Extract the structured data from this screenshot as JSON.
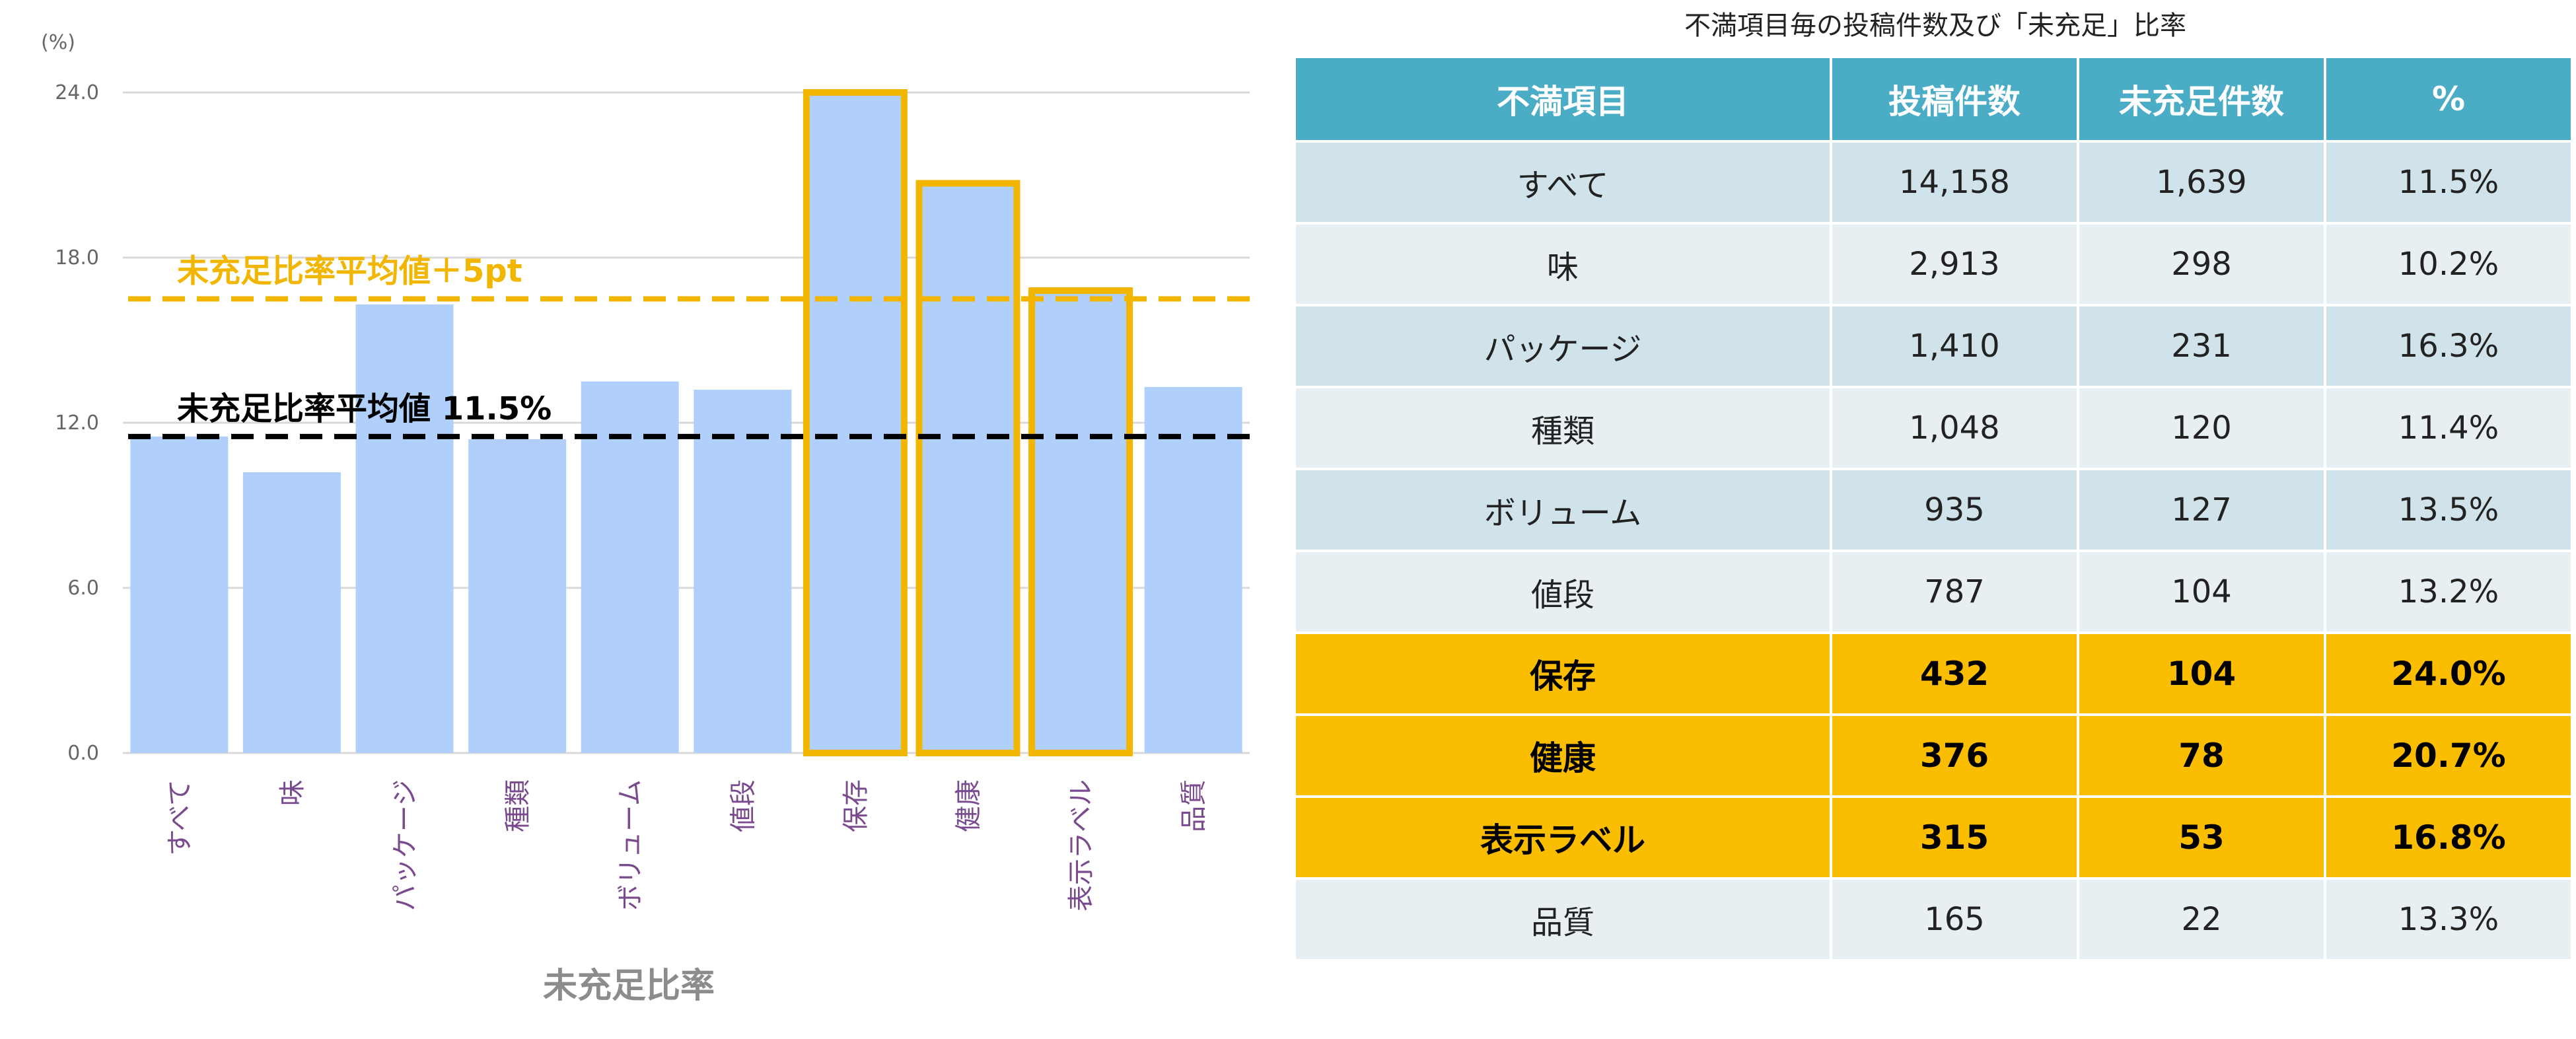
{
  "chart_data": [
    {
      "type": "bar",
      "unit_label": "(%)",
      "categories": [
        "すべて",
        "味",
        "パッケージ",
        "種類",
        "ボリューム",
        "値段",
        "保存",
        "健康",
        "表示ラベル",
        "品質"
      ],
      "values": [
        11.5,
        10.2,
        16.3,
        11.4,
        13.5,
        13.2,
        24.0,
        20.7,
        16.8,
        13.3
      ],
      "highlighted": [
        "保存",
        "健康",
        "表示ラベル"
      ],
      "yticks": [
        "0.0",
        "6.0",
        "12.0",
        "18.0",
        "24.0"
      ],
      "ylim": [
        0,
        24
      ],
      "xlabel": "未充足比率",
      "grid": true,
      "reference_lines": [
        {
          "label": "未充足比率平均値＋5pt",
          "value": 16.5,
          "color": "#f2b600"
        },
        {
          "label": "未充足比率平均値 11.5%",
          "value": 11.5,
          "color": "#000000"
        }
      ],
      "colors": {
        "bar": "#b0d0fb",
        "highlight_border": "#f2b600"
      }
    },
    {
      "type": "table",
      "title": "不満項目毎の投稿件数及び「未充足」比率",
      "columns": [
        "不満項目",
        "投稿件数",
        "未充足件数",
        "%"
      ],
      "rows": [
        [
          "すべて",
          "14,158",
          "1,639",
          "11.5%"
        ],
        [
          "味",
          "2,913",
          "298",
          "10.2%"
        ],
        [
          "パッケージ",
          "1,410",
          "231",
          "16.3%"
        ],
        [
          "種類",
          "1,048",
          "120",
          "11.4%"
        ],
        [
          "ボリューム",
          "935",
          "127",
          "13.5%"
        ],
        [
          "値段",
          "787",
          "104",
          "13.2%"
        ],
        [
          "保存",
          "432",
          "104",
          "24.0%"
        ],
        [
          "健康",
          "376",
          "78",
          "20.7%"
        ],
        [
          "表示ラベル",
          "315",
          "53",
          "16.8%"
        ],
        [
          "品質",
          "165",
          "22",
          "13.3%"
        ]
      ],
      "highlighted_rows": [
        "保存",
        "健康",
        "表示ラベル"
      ],
      "colors": {
        "header": "#4bacc6",
        "row_odd": "#d0e3ea",
        "row_even": "#e8eff2",
        "row_highlight": "#fbbd00"
      }
    }
  ]
}
